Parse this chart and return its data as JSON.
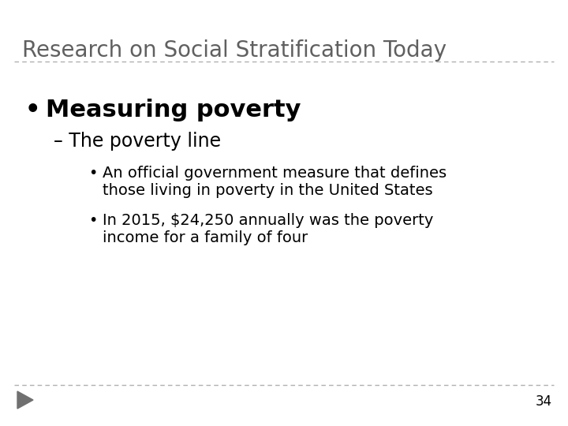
{
  "title": "Research on Social Stratification Today",
  "title_color": "#606060",
  "background_color": "#ffffff",
  "bullet1": "Measuring poverty",
  "sub1": "– The poverty line",
  "sub_bullet1_line1": "An official government measure that defines",
  "sub_bullet1_line2": "those living in poverty in the United States",
  "sub_bullet2_line1": "In 2015, $24,250 annually was the poverty",
  "sub_bullet2_line2": "income for a family of four",
  "page_number": "34",
  "arrow_color": "#707070",
  "dashed_line_color": "#b0b0b0",
  "title_fontsize": 20,
  "bullet1_fontsize": 22,
  "sub1_fontsize": 17,
  "sub2_fontsize": 14
}
